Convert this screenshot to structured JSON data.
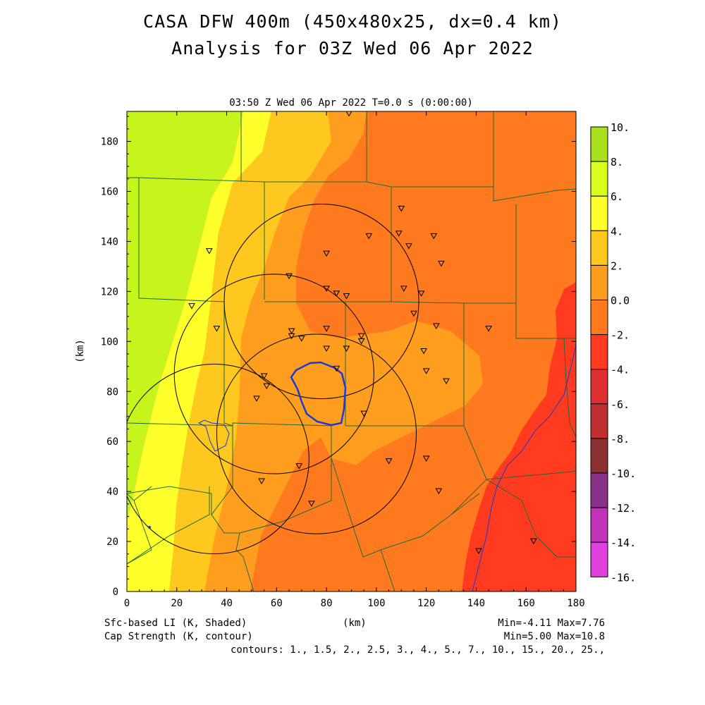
{
  "title": {
    "line1": "CASA DFW 400m (450x480x25, dx=0.4 km)",
    "line2": "Analysis for 03Z Wed 06 Apr 2022"
  },
  "subtitle": "03:50 Z Wed 06 Apr 2022   T=0.0 s (0:00:00)",
  "footer": {
    "shaded_label": "Sfc-based LI (K, Shaded)",
    "contour_label": "Cap Strength (K, contour)",
    "x_unit": "(km)",
    "shaded_stats": "Min=-4.11 Max=7.76",
    "contour_stats": "Min=5.00 Max=10.8",
    "contours": "contours: 1., 1.5, 2., 2.5, 3., 4., 5., 7., 10., 15., 20., 25.,"
  },
  "chart_data": {
    "type": "heatmap",
    "xlabel": "(km)",
    "ylabel": "(km)",
    "xlim": [
      0,
      180
    ],
    "ylim": [
      0,
      192
    ],
    "x_ticks": [
      "0",
      "20",
      "40",
      "60",
      "80",
      "100",
      "120",
      "140",
      "160",
      "180"
    ],
    "y_ticks": [
      "0",
      "20",
      "40",
      "60",
      "80",
      "100",
      "120",
      "140",
      "160",
      "180"
    ],
    "colorbar": {
      "labels": [
        "10.",
        "8.",
        "6.",
        "4.",
        "2.",
        "0.0",
        "-2.",
        "-4.",
        "-6.",
        "-8.",
        "-10.",
        "-12.",
        "-14.",
        "-16."
      ],
      "colors": [
        "#a8e01e",
        "#d8ff1e",
        "#ffff2a",
        "#ffc81e",
        "#ff9e1e",
        "#ff7a1e",
        "#ff3a1e",
        "#de3030",
        "#c03030",
        "#8a3030",
        "#883388",
        "#c033b8",
        "#e040e0"
      ]
    },
    "radar_circles": [
      {
        "cx": 78,
        "cy": 116,
        "r": 39
      },
      {
        "cx": 59,
        "cy": 87,
        "r": 40
      },
      {
        "cx": 35,
        "cy": 53,
        "r": 38
      },
      {
        "cx": 76,
        "cy": 63,
        "r": 40
      }
    ],
    "stations": [
      [
        89,
        191
      ],
      [
        110,
        153
      ],
      [
        97,
        142
      ],
      [
        109,
        143
      ],
      [
        123,
        142
      ],
      [
        113,
        138
      ],
      [
        80,
        135
      ],
      [
        33,
        136
      ],
      [
        126,
        131
      ],
      [
        65,
        126
      ],
      [
        80,
        121
      ],
      [
        111,
        121
      ],
      [
        84,
        119
      ],
      [
        88,
        118
      ],
      [
        118,
        119
      ],
      [
        26,
        114
      ],
      [
        115,
        111
      ],
      [
        36,
        105
      ],
      [
        66,
        104
      ],
      [
        80,
        105
      ],
      [
        124,
        106
      ],
      [
        145,
        105
      ],
      [
        66,
        102
      ],
      [
        70,
        101
      ],
      [
        94,
        102
      ],
      [
        80,
        97
      ],
      [
        88,
        97
      ],
      [
        94,
        100
      ],
      [
        119,
        96
      ],
      [
        120,
        88
      ],
      [
        55,
        86
      ],
      [
        56,
        82
      ],
      [
        128,
        84
      ],
      [
        52,
        77
      ],
      [
        84,
        89
      ],
      [
        95,
        71
      ],
      [
        69,
        50
      ],
      [
        105,
        52
      ],
      [
        120,
        53
      ],
      [
        54,
        44
      ],
      [
        125,
        40
      ],
      [
        74,
        35
      ],
      [
        141,
        16
      ],
      [
        163,
        20
      ]
    ]
  }
}
